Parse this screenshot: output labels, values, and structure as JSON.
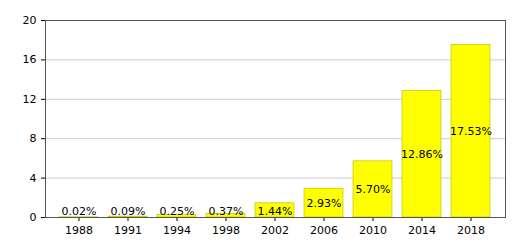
{
  "chart_data": {
    "type": "bar",
    "categories": [
      "1988",
      "1991",
      "1994",
      "1998",
      "2002",
      "2006",
      "2010",
      "2014",
      "2018"
    ],
    "values": [
      0.02,
      0.09,
      0.25,
      0.37,
      1.44,
      2.93,
      5.7,
      12.86,
      17.53
    ],
    "value_labels": [
      "0.02%",
      "0.09%",
      "0.25%",
      "0.37%",
      "1.44%",
      "2.93%",
      "5.70%",
      "12.86%",
      "17.53%"
    ],
    "data_labels": true,
    "color": "#ffff00",
    "ylim": [
      0,
      20
    ],
    "yticks": [
      0,
      4,
      8,
      12,
      16,
      20
    ],
    "grid": true
  }
}
